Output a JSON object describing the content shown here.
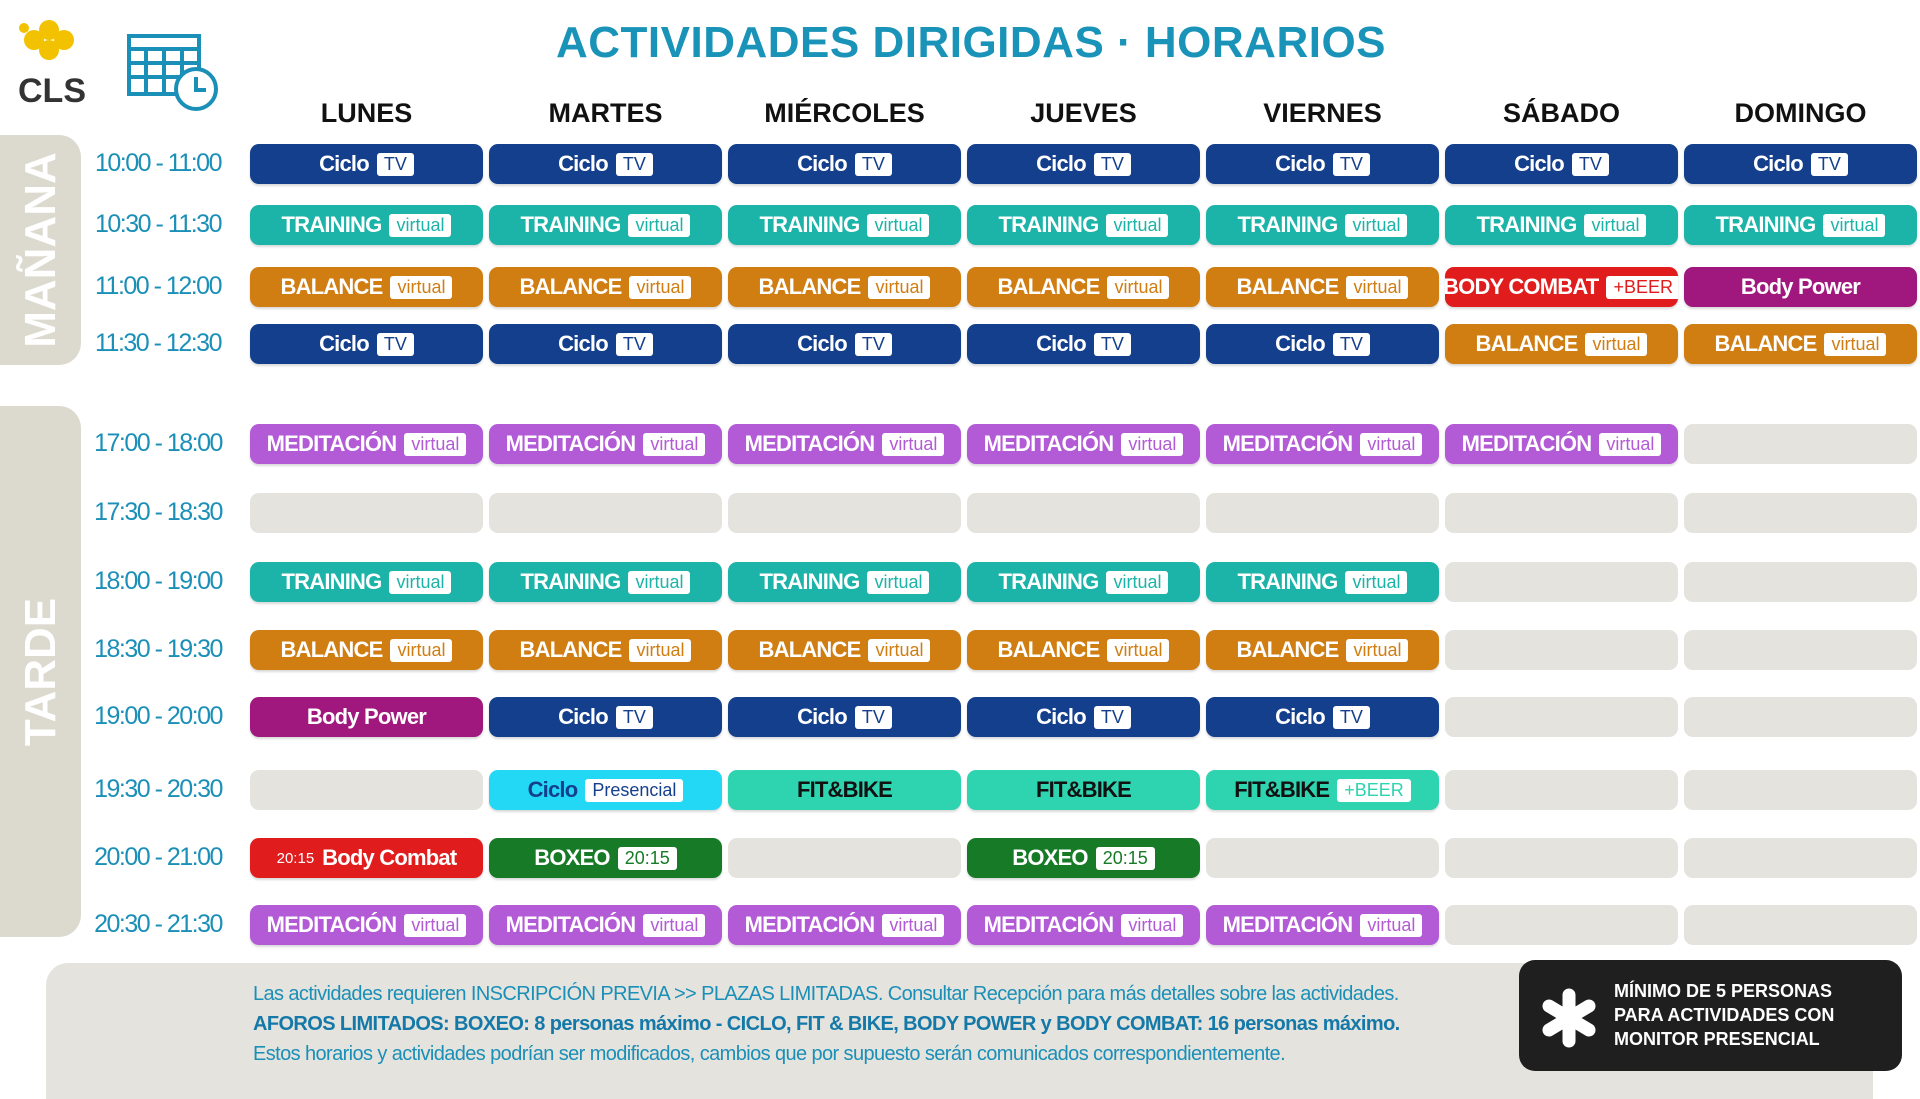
{
  "header": {
    "title": "ACTIVIDADES DIRIGIDAS · HORARIOS",
    "logo": "CLS"
  },
  "days": [
    "LUNES",
    "MARTES",
    "MIÉRCOLES",
    "JUEVES",
    "VIERNES",
    "SÁBADO",
    "DOMINGO"
  ],
  "sections": [
    {
      "label": "MAÑANA",
      "rows": [
        {
          "time": "10:00 - 11:00",
          "cells": [
            {
              "name": "Ciclo",
              "tag": "TV",
              "color": "#143f8c"
            },
            {
              "name": "Ciclo",
              "tag": "TV",
              "color": "#143f8c"
            },
            {
              "name": "Ciclo",
              "tag": "TV",
              "color": "#143f8c"
            },
            {
              "name": "Ciclo",
              "tag": "TV",
              "color": "#143f8c"
            },
            {
              "name": "Ciclo",
              "tag": "TV",
              "color": "#143f8c"
            },
            {
              "name": "Ciclo",
              "tag": "TV",
              "color": "#143f8c"
            },
            {
              "name": "Ciclo",
              "tag": "TV",
              "color": "#143f8c"
            }
          ]
        },
        {
          "time": "10:30 - 11:30",
          "cells": [
            {
              "name": "TRAINING",
              "tag": "virtual",
              "color": "#1cb3a8"
            },
            {
              "name": "TRAINING",
              "tag": "virtual",
              "color": "#1cb3a8"
            },
            {
              "name": "TRAINING",
              "tag": "virtual",
              "color": "#1cb3a8"
            },
            {
              "name": "TRAINING",
              "tag": "virtual",
              "color": "#1cb3a8"
            },
            {
              "name": "TRAINING",
              "tag": "virtual",
              "color": "#1cb3a8"
            },
            {
              "name": "TRAINING",
              "tag": "virtual",
              "color": "#1cb3a8"
            },
            {
              "name": "TRAINING",
              "tag": "virtual",
              "color": "#1cb3a8"
            }
          ]
        },
        {
          "time": "11:00 - 12:00",
          "cells": [
            {
              "name": "BALANCE",
              "tag": "virtual",
              "color": "#d07d12"
            },
            {
              "name": "BALANCE",
              "tag": "virtual",
              "color": "#d07d12"
            },
            {
              "name": "BALANCE",
              "tag": "virtual",
              "color": "#d07d12"
            },
            {
              "name": "BALANCE",
              "tag": "virtual",
              "color": "#d07d12"
            },
            {
              "name": "BALANCE",
              "tag": "virtual",
              "color": "#d07d12"
            },
            {
              "name": "BODY COMBAT",
              "tag": "+BEER",
              "color": "#e01c1c"
            },
            {
              "name": "Body Power",
              "color": "#a0187e"
            }
          ]
        },
        {
          "time": "11:30 - 12:30",
          "cells": [
            {
              "name": "Ciclo",
              "tag": "TV",
              "color": "#143f8c"
            },
            {
              "name": "Ciclo",
              "tag": "TV",
              "color": "#143f8c"
            },
            {
              "name": "Ciclo",
              "tag": "TV",
              "color": "#143f8c"
            },
            {
              "name": "Ciclo",
              "tag": "TV",
              "color": "#143f8c"
            },
            {
              "name": "Ciclo",
              "tag": "TV",
              "color": "#143f8c"
            },
            {
              "name": "BALANCE",
              "tag": "virtual",
              "color": "#d07d12"
            },
            {
              "name": "BALANCE",
              "tag": "virtual",
              "color": "#d07d12"
            }
          ]
        }
      ]
    },
    {
      "label": "TARDE",
      "rows": [
        {
          "time": "17:00 - 18:00",
          "cells": [
            {
              "name": "MEDITACIÓN",
              "tag": "virtual",
              "color": "#b35ad6"
            },
            {
              "name": "MEDITACIÓN",
              "tag": "virtual",
              "color": "#b35ad6"
            },
            {
              "name": "MEDITACIÓN",
              "tag": "virtual",
              "color": "#b35ad6"
            },
            {
              "name": "MEDITACIÓN",
              "tag": "virtual",
              "color": "#b35ad6"
            },
            {
              "name": "MEDITACIÓN",
              "tag": "virtual",
              "color": "#b35ad6"
            },
            {
              "name": "MEDITACIÓN",
              "tag": "virtual",
              "color": "#b35ad6"
            },
            null
          ]
        },
        {
          "time": "17:30 - 18:30",
          "cells": [
            null,
            null,
            null,
            null,
            null,
            null,
            null
          ]
        },
        {
          "time": "18:00 - 19:00",
          "cells": [
            {
              "name": "TRAINING",
              "tag": "virtual",
              "color": "#1cb3a8"
            },
            {
              "name": "TRAINING",
              "tag": "virtual",
              "color": "#1cb3a8"
            },
            {
              "name": "TRAINING",
              "tag": "virtual",
              "color": "#1cb3a8"
            },
            {
              "name": "TRAINING",
              "tag": "virtual",
              "color": "#1cb3a8"
            },
            {
              "name": "TRAINING",
              "tag": "virtual",
              "color": "#1cb3a8"
            },
            null,
            null
          ]
        },
        {
          "time": "18:30 - 19:30",
          "cells": [
            {
              "name": "BALANCE",
              "tag": "virtual",
              "color": "#d07d12"
            },
            {
              "name": "BALANCE",
              "tag": "virtual",
              "color": "#d07d12"
            },
            {
              "name": "BALANCE",
              "tag": "virtual",
              "color": "#d07d12"
            },
            {
              "name": "BALANCE",
              "tag": "virtual",
              "color": "#d07d12"
            },
            {
              "name": "BALANCE",
              "tag": "virtual",
              "color": "#d07d12"
            },
            null,
            null
          ]
        },
        {
          "time": "19:00 - 20:00",
          "cells": [
            {
              "name": "Body Power",
              "color": "#a0187e"
            },
            {
              "name": "Ciclo",
              "tag": "TV",
              "color": "#143f8c"
            },
            {
              "name": "Ciclo",
              "tag": "TV",
              "color": "#143f8c"
            },
            {
              "name": "Ciclo",
              "tag": "TV",
              "color": "#143f8c"
            },
            {
              "name": "Ciclo",
              "tag": "TV",
              "color": "#143f8c"
            },
            null,
            null
          ]
        },
        {
          "time": "19:30 - 20:30",
          "cells": [
            null,
            {
              "name": "Ciclo",
              "tag": "Presencial",
              "color": "#22d8f5",
              "text_color": "#143f8c"
            },
            {
              "name": "FIT&BIKE",
              "color": "#2ed3b0",
              "text_color": "#111111"
            },
            {
              "name": "FIT&BIKE",
              "color": "#2ed3b0",
              "text_color": "#111111"
            },
            {
              "name": "FIT&BIKE",
              "tag": "+BEER",
              "color": "#2ed3b0",
              "text_color": "#111111"
            },
            null,
            null
          ]
        },
        {
          "time": "20:00 - 21:00",
          "cells": [
            {
              "pre": "20:15",
              "name": "Body Combat",
              "color": "#e01c1c"
            },
            {
              "name": "BOXEO",
              "tag": "20:15",
              "color": "#177a26"
            },
            null,
            {
              "name": "BOXEO",
              "tag": "20:15",
              "color": "#177a26"
            },
            null,
            null,
            null
          ]
        },
        {
          "time": "20:30 - 21:30",
          "cells": [
            {
              "name": "MEDITACIÓN",
              "tag": "virtual",
              "color": "#b35ad6"
            },
            {
              "name": "MEDITACIÓN",
              "tag": "virtual",
              "color": "#b35ad6"
            },
            {
              "name": "MEDITACIÓN",
              "tag": "virtual",
              "color": "#b35ad6"
            },
            {
              "name": "MEDITACIÓN",
              "tag": "virtual",
              "color": "#b35ad6"
            },
            {
              "name": "MEDITACIÓN",
              "tag": "virtual",
              "color": "#b35ad6"
            },
            null,
            null
          ]
        }
      ]
    }
  ],
  "footer": {
    "lines": [
      "Las actividades requieren INSCRIPCIÓN PREVIA >> PLAZAS LIMITADAS. Consultar Recepción para más detalles sobre las actividades.",
      "AFOROS LIMITADOS:  BOXEO: 8 personas máximo -  CICLO, FIT & BIKE, BODY POWER y BODY COMBAT:  16 personas máximo.",
      "Estos horarios y actividades podrían ser modificados, cambios que por supuesto serán comunicados correspondientemente."
    ]
  },
  "notice": {
    "lines": [
      "MÍNIMO DE 5 PERSONAS",
      "PARA ACTIVIDADES  CON",
      "MONITOR PRESENCIAL"
    ]
  }
}
